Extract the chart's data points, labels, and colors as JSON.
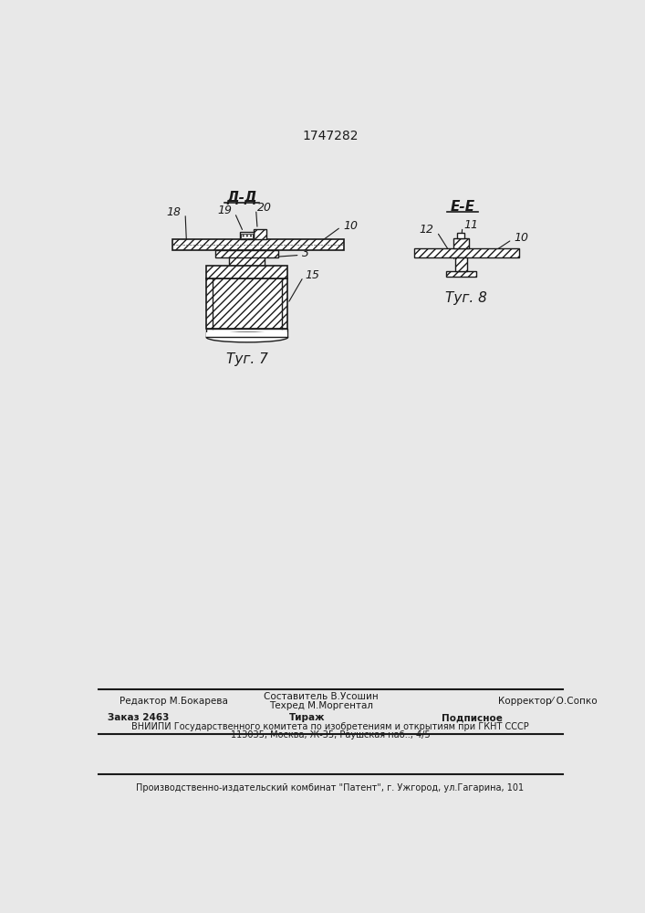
{
  "title": "1747282",
  "fig7_label": "Τуг. 7",
  "fig8_label": "Τуг. 8",
  "section_dd": "Д-Д",
  "section_ee": "Е-Е",
  "background_color": "#e8e8e8",
  "line_color": "#1a1a1a",
  "footer_line1_left": "Редактор М.Бокарева",
  "footer_center_top": "Составитель В.Усошин",
  "footer_center_bot": "Техред М.Моргентал",
  "footer_line1_right": "Корректор⁄ О.Сопко",
  "footer_zak": "Заказ 2463",
  "footer_tir": "Тираж",
  "footer_pod": "Подписное",
  "footer_line3": "ВНИИПИ Государственного комитета по изобретениям и открытиям при ГКНТ СССР",
  "footer_line4": "113035, Москва, Ж-35, Раушская наб.., 4/5",
  "footer_line5": "Производственно-издательский комбинат \"Патент\", г. Ужгород, ул.Гагарина, 101"
}
